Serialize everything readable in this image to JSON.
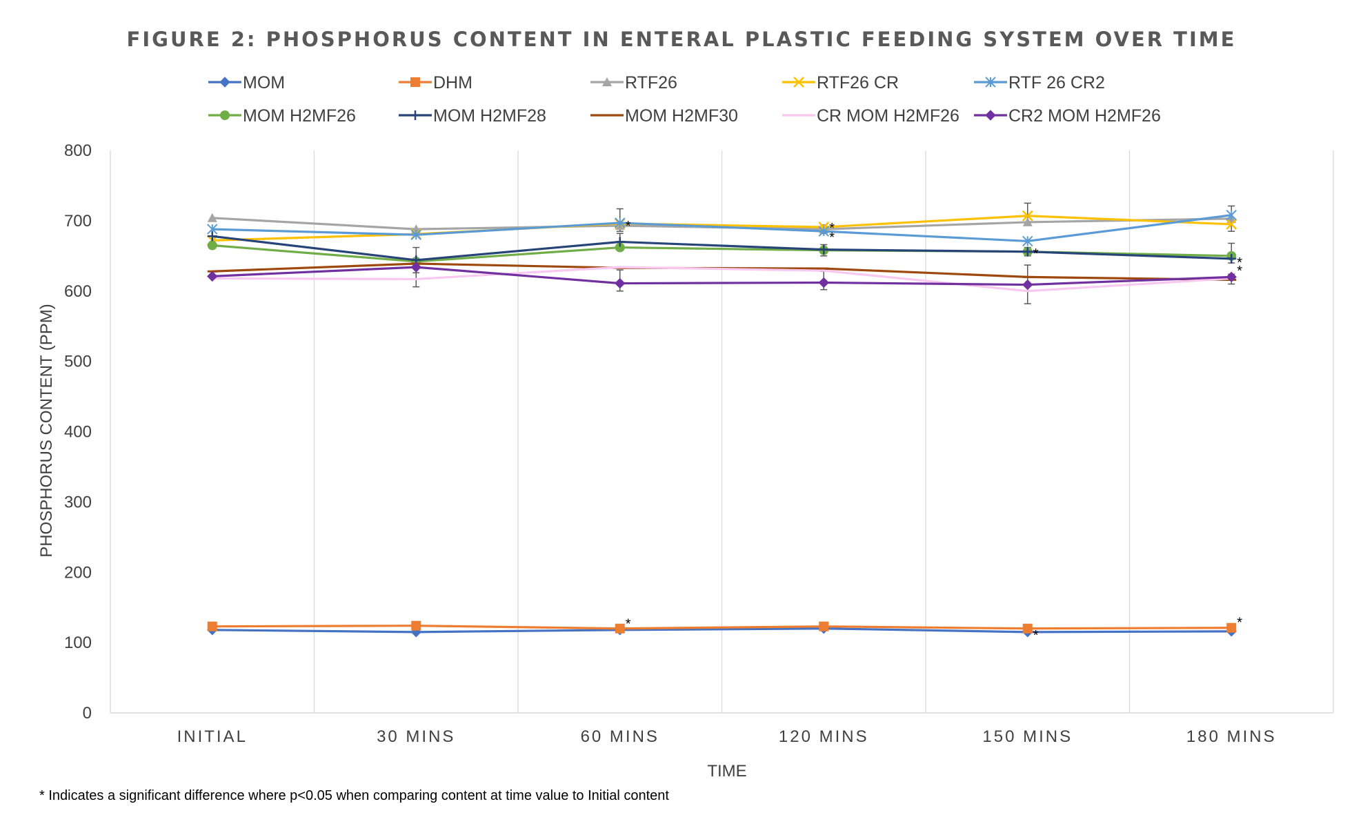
{
  "chart_data": {
    "type": "line",
    "title": "FIGURE 2: PHOSPHORUS CONTENT IN ENTERAL PLASTIC FEEDING SYSTEM OVER TIME",
    "xlabel": "TIME",
    "ylabel": "PHOSPHORUS CONTENT (PPM)",
    "categories": [
      "INITIAL",
      "30 MINS",
      "60 MINS",
      "120 MINS",
      "150 MINS",
      "180 MINS"
    ],
    "ylim": [
      0,
      800
    ],
    "yticks": [
      "0",
      "100",
      "200",
      "300",
      "400",
      "500",
      "600",
      "700",
      "800"
    ],
    "grid": "vertical",
    "legend_position": "top",
    "footnote": "* Indicates a significant difference where p<0.05 when comparing content at time value to Initial content",
    "significance_marker": "*",
    "series": [
      {
        "name": "MOM",
        "color": "#4472C4",
        "marker": "diamond",
        "values": [
          118,
          115,
          118,
          120,
          115,
          116
        ]
      },
      {
        "name": "DHM",
        "color": "#ED7D31",
        "marker": "square",
        "values": [
          123,
          124,
          120,
          123,
          120,
          121
        ]
      },
      {
        "name": "RTF26",
        "color": "#A5A5A5",
        "marker": "triangle",
        "values": [
          704,
          688,
          693,
          688,
          698,
          703
        ]
      },
      {
        "name": "RTF26 CR",
        "color": "#FFC000",
        "marker": "x",
        "values": [
          672,
          681,
          696,
          691,
          707,
          695
        ]
      },
      {
        "name": "RTF 26 CR2",
        "color": "#5B9BD5",
        "marker": "asterisk",
        "values": [
          688,
          680,
          697,
          685,
          671,
          708
        ]
      },
      {
        "name": "MOM H2MF26",
        "color": "#70AD47",
        "marker": "circle",
        "values": [
          665,
          642,
          662,
          658,
          656,
          650
        ]
      },
      {
        "name": "MOM H2MF28",
        "color": "#264478",
        "marker": "plus",
        "values": [
          678,
          644,
          670,
          659,
          656,
          646
        ]
      },
      {
        "name": "MOM H2MF30",
        "color": "#9E480E",
        "marker": "dash",
        "values": [
          628,
          639,
          633,
          632,
          620,
          616
        ]
      },
      {
        "name": "CR MOM H2MF26",
        "color": "#F8C8F0",
        "marker": "none",
        "values": [
          618,
          617,
          634,
          629,
          600,
          618
        ]
      },
      {
        "name": "CR2 MOM H2MF26",
        "color": "#7030A0",
        "marker": "diamond",
        "values": [
          621,
          634,
          611,
          612,
          609,
          620
        ]
      }
    ],
    "error_bars": [
      {
        "category": "30 MINS",
        "value": 644,
        "plus": 18,
        "minus": 18
      },
      {
        "category": "30 MINS",
        "value": 624,
        "plus": 10,
        "minus": 18
      },
      {
        "category": "60 MINS",
        "value": 697,
        "plus": 20,
        "minus": 12
      },
      {
        "category": "60 MINS",
        "value": 670,
        "plus": 12,
        "minus": 12
      },
      {
        "category": "60 MINS",
        "value": 620,
        "plus": 10,
        "minus": 20
      },
      {
        "category": "120 MINS",
        "value": 688,
        "plus": 6,
        "minus": 6
      },
      {
        "category": "120 MINS",
        "value": 658,
        "plus": 8,
        "minus": 8
      },
      {
        "category": "120 MINS",
        "value": 618,
        "plus": 10,
        "minus": 16
      },
      {
        "category": "150 MINS",
        "value": 707,
        "plus": 18,
        "minus": 10
      },
      {
        "category": "150 MINS",
        "value": 656,
        "plus": 6,
        "minus": 6
      },
      {
        "category": "150 MINS",
        "value": 612,
        "plus": 25,
        "minus": 30
      },
      {
        "category": "180 MINS",
        "value": 705,
        "plus": 16,
        "minus": 20
      },
      {
        "category": "180 MINS",
        "value": 650,
        "plus": 18,
        "minus": 10
      },
      {
        "category": "180 MINS",
        "value": 618,
        "plus": 6,
        "minus": 8
      }
    ],
    "significance": [
      {
        "category": "60 MINS",
        "value": 692
      },
      {
        "category": "60 MINS",
        "value": 126
      },
      {
        "category": "120 MINS",
        "value": 689
      },
      {
        "category": "120 MINS",
        "value": 676
      },
      {
        "category": "150 MINS",
        "value": 653
      },
      {
        "category": "150 MINS",
        "value": 110
      },
      {
        "category": "180 MINS",
        "value": 640
      },
      {
        "category": "180 MINS",
        "value": 628
      },
      {
        "category": "180 MINS",
        "value": 128
      }
    ]
  }
}
